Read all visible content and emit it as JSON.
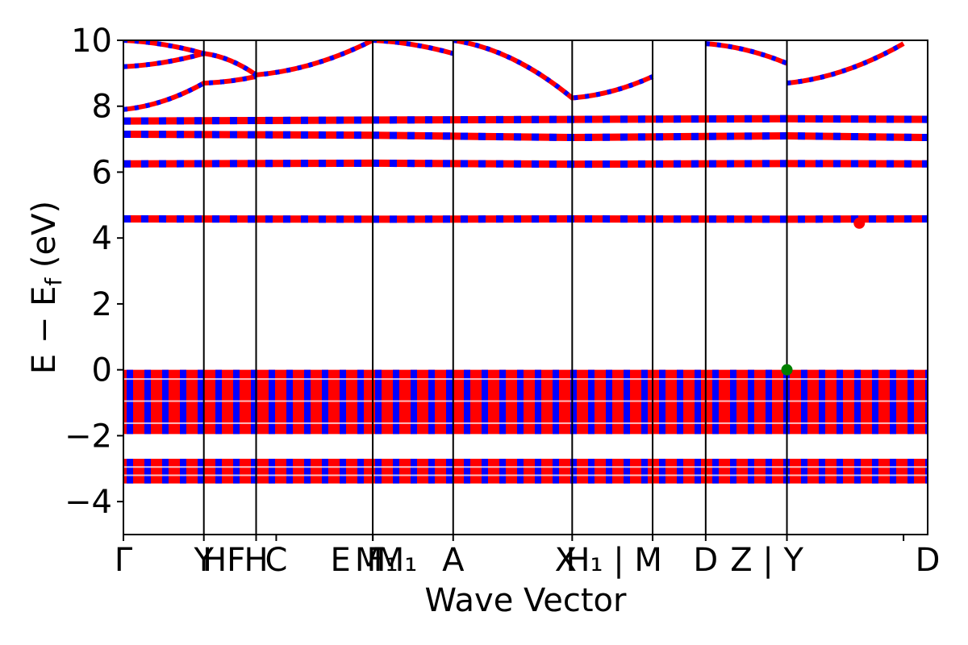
{
  "chart_data": {
    "type": "line",
    "title": "",
    "xlabel": "Wave Vector",
    "ylabel": "E − E_f (eV)",
    "ylabel_parts": {
      "main": "E − E",
      "sub": "f",
      "tail": " (eV)"
    },
    "ylim": [
      -5,
      10
    ],
    "yticks": [
      -4,
      -2,
      0,
      2,
      4,
      6,
      8,
      10
    ],
    "ytick_labels": [
      "−4",
      "−2",
      "0",
      "2",
      "4",
      "6",
      "8",
      "10"
    ],
    "grid": false,
    "legend": "none",
    "high_symmetry_points": [
      {
        "k": 0.0,
        "label": "Γ"
      },
      {
        "k": 0.1,
        "label": "Y"
      },
      {
        "k": 0.165,
        "label": "HF"
      },
      {
        "k": 0.165,
        "label": "H"
      },
      {
        "k": 0.19,
        "label": "C"
      },
      {
        "k": 0.31,
        "label": "E"
      },
      {
        "k": 0.31,
        "label": "M"
      },
      {
        "k": 0.31,
        "label": "F₁"
      },
      {
        "k": 0.31,
        "label": "M₁"
      },
      {
        "k": 0.41,
        "label": "A"
      },
      {
        "k": 0.558,
        "label": "X"
      },
      {
        "k": 0.658,
        "label": "H₁ | M"
      },
      {
        "k": 0.724,
        "label": "D"
      },
      {
        "k": 0.825,
        "label": "Z | Y"
      },
      {
        "k": 0.97,
        "label": "D"
      }
    ],
    "segment_boundaries": [
      0.1,
      0.165,
      0.31,
      0.41,
      0.558,
      0.658,
      0.724,
      0.825
    ],
    "series_colors": {
      "spin_up": "#ff0000",
      "spin_down": "#0000ff",
      "vbm_marker": "#008000",
      "cbm_marker": "#ff0000"
    },
    "flat_bands": [
      {
        "name": "",
        "values": [
          4.58,
          4.57,
          4.58,
          4.57,
          4.58
        ]
      },
      {
        "name": "",
        "values": [
          6.25,
          6.27,
          6.24,
          6.26,
          6.25
        ]
      },
      {
        "name": "",
        "values": [
          7.15,
          7.12,
          7.05,
          7.1,
          7.05
        ]
      },
      {
        "name": "",
        "values": [
          7.55,
          7.58,
          7.6,
          7.62,
          7.6
        ]
      }
    ],
    "upper_bands": [
      {
        "name": "",
        "x": [
          0.0,
          0.1,
          0.165
        ],
        "y": [
          7.9,
          8.7,
          8.9
        ]
      },
      {
        "name": "",
        "x": [
          0.0,
          0.1,
          0.165,
          0.31
        ],
        "y": [
          9.2,
          9.6,
          8.95,
          10.0
        ]
      },
      {
        "name": "",
        "x": [
          0.0,
          0.1
        ],
        "y": [
          10.0,
          9.6
        ]
      },
      {
        "name": "",
        "x": [
          0.31,
          0.41
        ],
        "y": [
          10.0,
          9.6
        ]
      },
      {
        "name": "",
        "x": [
          0.41,
          0.558,
          0.658
        ],
        "y": [
          10.0,
          8.25,
          8.9
        ]
      },
      {
        "name": "",
        "x": [
          0.724,
          0.825
        ],
        "y": [
          9.9,
          9.3
        ]
      },
      {
        "name": "",
        "x": [
          0.825,
          0.97
        ],
        "y": [
          8.7,
          9.9
        ]
      }
    ],
    "valence_blocks": [
      {
        "name": "",
        "y_top": 0.0,
        "y_bottom": -1.95
      },
      {
        "name": "",
        "y_top": -2.7,
        "y_bottom": -3.45
      }
    ],
    "markers": [
      {
        "name": "",
        "k": 0.825,
        "y": 0.0
      },
      {
        "name": "",
        "k": 0.915,
        "y": 4.45
      }
    ]
  }
}
